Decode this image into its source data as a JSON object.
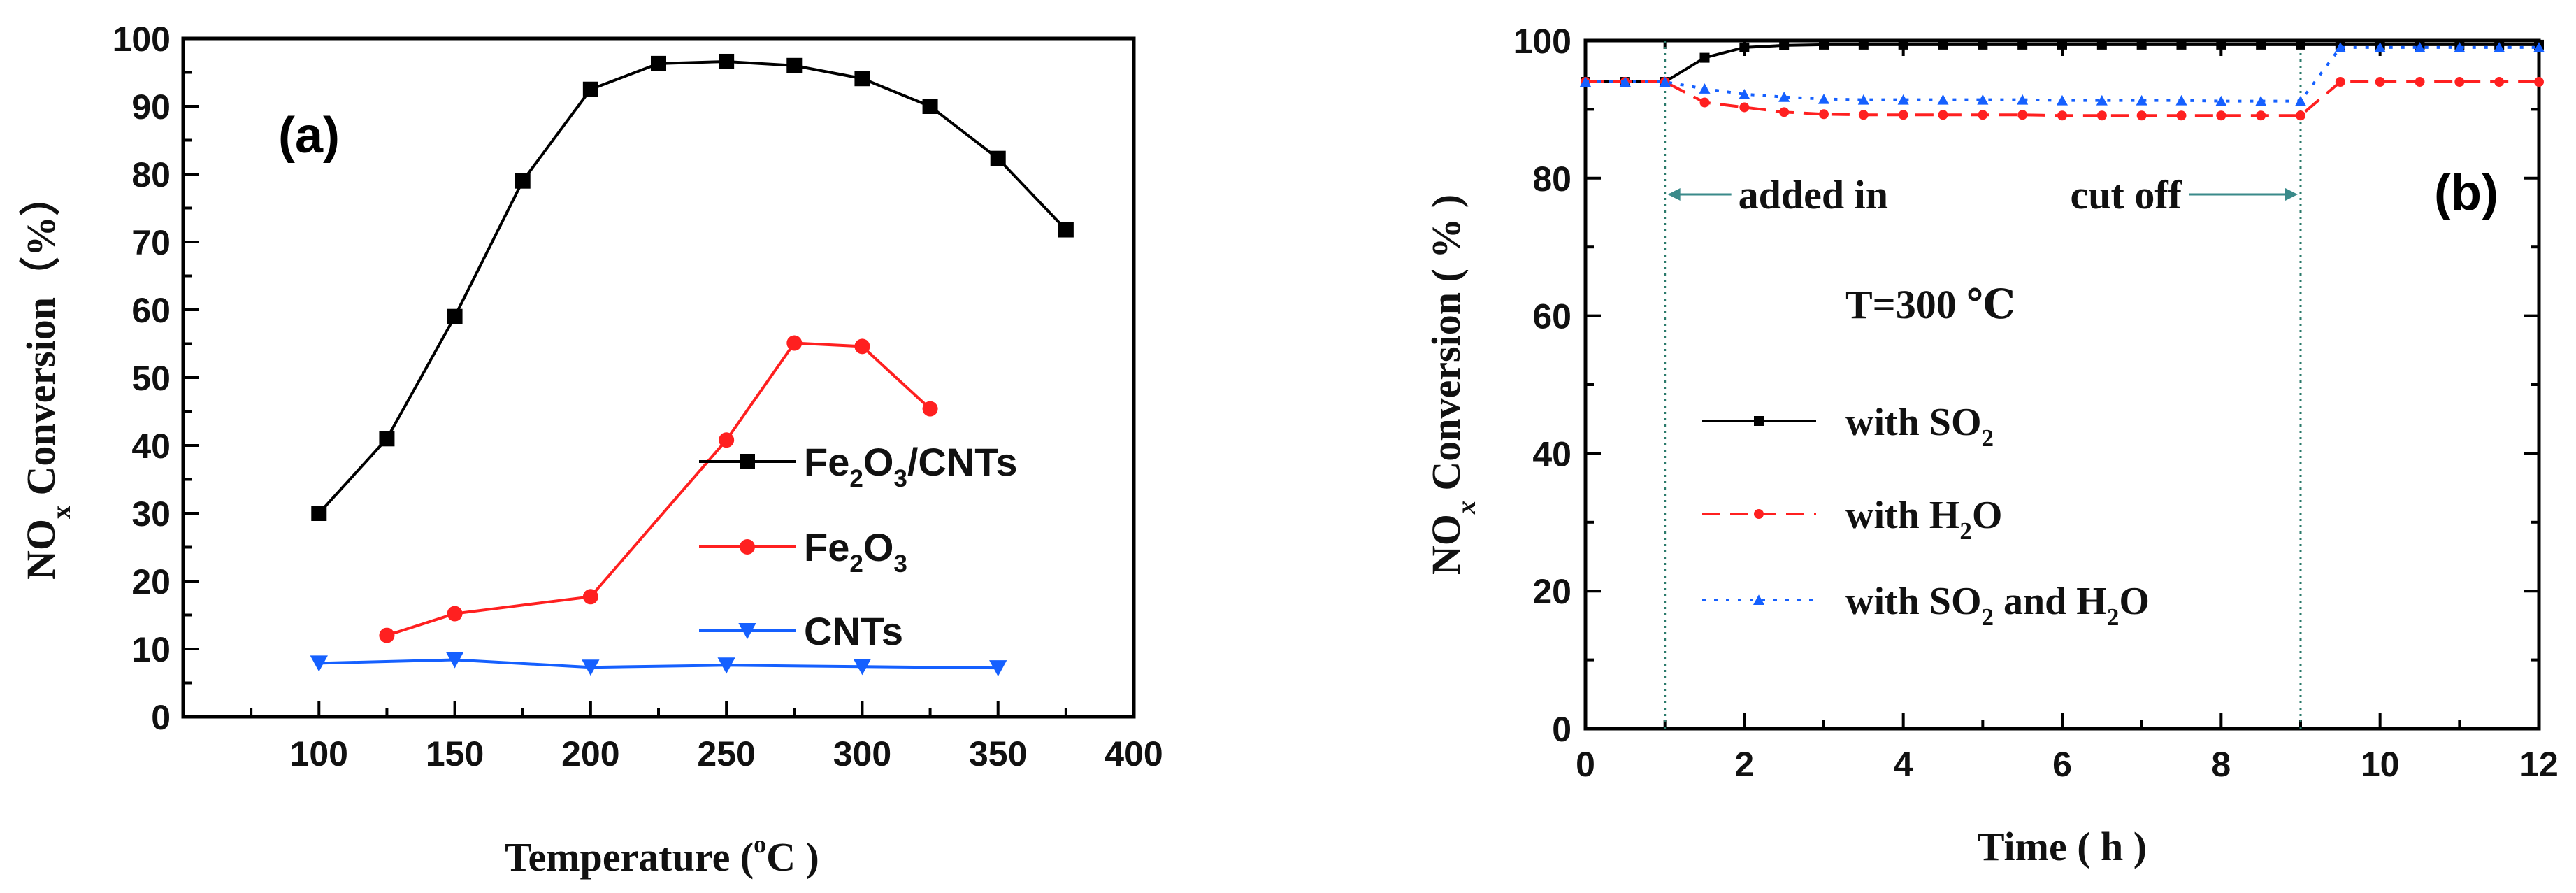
{
  "chart_data": [
    {
      "type": "line",
      "panel_label": "(a)",
      "xlabel_main": "Temperature (",
      "xlabel_sup": "o",
      "xlabel_end": "C )",
      "ylabel_main": "NO",
      "ylabel_sub": "x",
      "ylabel_end": " Conversion（%）",
      "xlim": [
        50,
        400
      ],
      "ylim": [
        0,
        100
      ],
      "xticks": [
        100,
        150,
        200,
        250,
        300,
        350,
        400
      ],
      "yticks": [
        0,
        10,
        20,
        30,
        40,
        50,
        60,
        70,
        80,
        90,
        100
      ],
      "legend_position": "right",
      "series": [
        {
          "name": "Fe2O3/CNTs",
          "legend": {
            "a": "Fe",
            "s1": "2",
            "b": "O",
            "s2": "3",
            "c": "/CNTs"
          },
          "color": "#000000",
          "marker": "square",
          "x": [
            100,
            125,
            150,
            175,
            200,
            225,
            250,
            275,
            300,
            325,
            350,
            375
          ],
          "y": [
            30,
            41,
            59,
            79,
            92.5,
            96.3,
            96.6,
            96.0,
            94.1,
            90.0,
            82.3,
            71.8
          ]
        },
        {
          "name": "Fe2O3",
          "legend": {
            "a": "Fe",
            "s1": "2",
            "b": "O",
            "s2": "3",
            "c": ""
          },
          "color": "#ff2020",
          "marker": "circle",
          "x": [
            125,
            150,
            200,
            250,
            275,
            300,
            325
          ],
          "y": [
            12,
            15.2,
            17.7,
            40.8,
            55.1,
            54.6,
            45.4
          ]
        },
        {
          "name": "CNTs",
          "legend": {
            "a": "CNTs",
            "s1": "",
            "b": "",
            "s2": "",
            "c": ""
          },
          "color": "#1560ff",
          "marker": "triangle-down",
          "x": [
            100,
            150,
            200,
            250,
            300,
            350
          ],
          "y": [
            7.9,
            8.4,
            7.3,
            7.6,
            7.4,
            7.2
          ]
        }
      ]
    },
    {
      "type": "line",
      "panel_label": "(b)",
      "xlabel": "Time ( h )",
      "ylabel_main": "NO",
      "ylabel_sub": "x",
      "ylabel_end": " Conversion ( % )",
      "xlim": [
        0,
        12
      ],
      "ylim": [
        0,
        100
      ],
      "xticks": [
        0,
        2,
        4,
        6,
        8,
        10,
        12
      ],
      "yticks": [
        0,
        20,
        40,
        60,
        80,
        100
      ],
      "annotations": {
        "added_in": "added in",
        "cut_off": "cut off",
        "temperature": "T=300 ℃",
        "added_in_time": 1,
        "cut_off_time": 9
      },
      "legend_position": "bottom-center",
      "series": [
        {
          "name": "with SO2",
          "legend": {
            "a": "with SO",
            "s1": "2",
            "b": "",
            "s2": "",
            "c": ""
          },
          "color": "#000000",
          "linestyle": "solid",
          "marker": "small-square",
          "x": [
            0,
            0.5,
            1.0,
            1.5,
            2.0,
            2.5,
            3.0,
            3.5,
            4.0,
            4.5,
            5.0,
            5.5,
            6.0,
            6.5,
            7.0,
            7.5,
            8.0,
            8.5,
            9.0,
            9.5,
            10.0,
            10.5,
            11.0,
            11.5,
            12.0
          ],
          "y": [
            94,
            94,
            94,
            97.5,
            99.0,
            99.3,
            99.4,
            99.4,
            99.4,
            99.4,
            99.4,
            99.4,
            99.4,
            99.4,
            99.4,
            99.4,
            99.4,
            99.4,
            99.4,
            99.4,
            99.4,
            99.4,
            99.4,
            99.4,
            99.4
          ]
        },
        {
          "name": "with H2O",
          "legend": {
            "a": "with H",
            "s1": "2",
            "b": "O",
            "s2": "",
            "c": ""
          },
          "color": "#ff2020",
          "linestyle": "dashed",
          "marker": "small-circle",
          "x": [
            0,
            0.5,
            1.0,
            1.5,
            2.0,
            2.5,
            3.0,
            3.5,
            4.0,
            4.5,
            5.0,
            5.5,
            6.0,
            6.5,
            7.0,
            7.5,
            8.0,
            8.5,
            9.0,
            9.5,
            10.0,
            10.5,
            11.0,
            11.5,
            12.0
          ],
          "y": [
            94,
            94,
            94,
            91,
            90.3,
            89.6,
            89.3,
            89.2,
            89.2,
            89.2,
            89.2,
            89.2,
            89.1,
            89.1,
            89.1,
            89.1,
            89.1,
            89.1,
            89.1,
            94,
            94,
            94,
            94,
            94,
            94
          ]
        },
        {
          "name": "with SO2 and H2O",
          "legend": {
            "a": "with SO",
            "s1": "2",
            "b": " and H",
            "s2": "2",
            "c": "O"
          },
          "color": "#1560ff",
          "linestyle": "dotted",
          "marker": "small-triangle",
          "x": [
            0,
            0.5,
            1.0,
            1.5,
            2.0,
            2.5,
            3.0,
            3.5,
            4.0,
            4.5,
            5.0,
            5.5,
            6.0,
            6.5,
            7.0,
            7.5,
            8.0,
            8.5,
            9.0,
            9.5,
            10.0,
            10.5,
            11.0,
            11.5,
            12.0
          ],
          "y": [
            94,
            94,
            94,
            93,
            92.2,
            91.8,
            91.5,
            91.4,
            91.4,
            91.4,
            91.4,
            91.4,
            91.3,
            91.3,
            91.3,
            91.3,
            91.2,
            91.2,
            91.2,
            99,
            99,
            99,
            99,
            99,
            99
          ]
        }
      ]
    }
  ]
}
